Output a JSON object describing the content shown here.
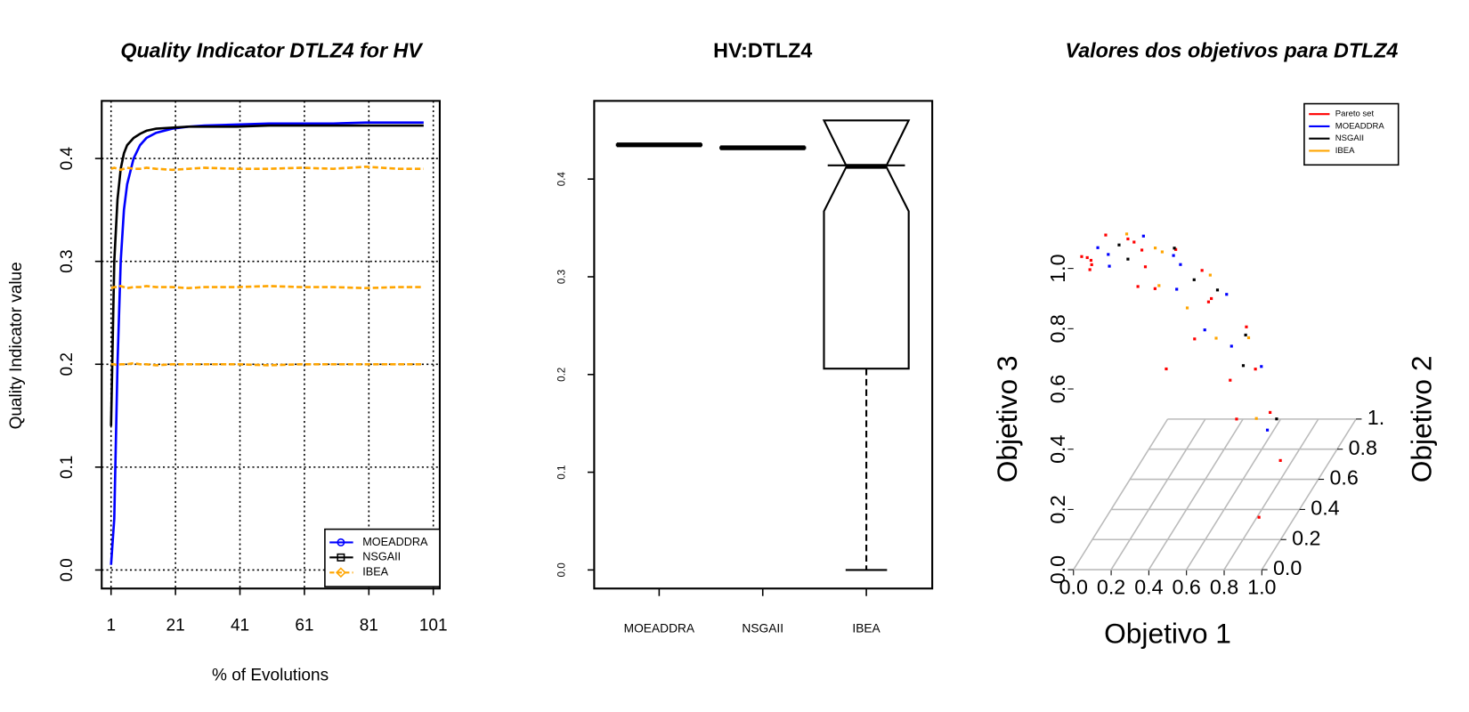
{
  "chart_data": [
    {
      "type": "line",
      "title": "Quality Indicator DTLZ4 for HV",
      "xlabel": "% of Evolutions",
      "ylabel": "Quality Indicator value",
      "x": [
        1,
        2,
        3,
        4,
        5,
        6,
        8,
        10,
        12,
        15,
        20,
        25,
        30,
        40,
        50,
        60,
        70,
        80,
        90,
        98
      ],
      "series": [
        {
          "name": "MOEADDRA",
          "color": "#0000ff",
          "linestyle": "solid",
          "marker": "circle",
          "values": [
            0.005,
            0.05,
            0.2,
            0.3,
            0.35,
            0.375,
            0.4,
            0.413,
            0.42,
            0.425,
            0.429,
            0.431,
            0.432,
            0.433,
            0.434,
            0.434,
            0.434,
            0.435,
            0.435,
            0.435
          ]
        },
        {
          "name": "NSGAII",
          "color": "#000000",
          "linestyle": "solid",
          "marker": "square",
          "values": [
            0.14,
            0.3,
            0.36,
            0.39,
            0.405,
            0.413,
            0.42,
            0.424,
            0.427,
            0.429,
            0.43,
            0.431,
            0.431,
            0.431,
            0.432,
            0.432,
            0.432,
            0.432,
            0.432,
            0.432
          ]
        },
        {
          "name": "IBEA",
          "color": "#ffa500",
          "linestyle": "dashed",
          "marker": "diamond",
          "values": [
            0.39,
            0.391,
            0.39,
            0.389,
            0.39,
            0.391,
            0.39,
            0.39,
            0.391,
            0.39,
            0.389,
            0.39,
            0.391,
            0.39,
            0.39,
            0.391,
            0.39,
            0.392,
            0.39,
            0.39
          ]
        },
        {
          "name": "IBEA",
          "color": "#ffa500",
          "linestyle": "dashed",
          "marker": "diamond",
          "values": [
            0.274,
            0.275,
            0.275,
            0.276,
            0.275,
            0.274,
            0.275,
            0.275,
            0.276,
            0.275,
            0.275,
            0.274,
            0.275,
            0.275,
            0.276,
            0.275,
            0.275,
            0.274,
            0.275,
            0.275
          ]
        },
        {
          "name": "IBEA",
          "color": "#ffa500",
          "linestyle": "dashed",
          "marker": "diamond",
          "values": [
            0.2,
            0.2,
            0.199,
            0.2,
            0.2,
            0.2,
            0.201,
            0.2,
            0.2,
            0.199,
            0.2,
            0.2,
            0.2,
            0.2,
            0.199,
            0.2,
            0.2,
            0.2,
            0.2,
            0.2
          ]
        }
      ],
      "xlim": [
        -1.9,
        103
      ],
      "ylim": [
        -0.018,
        0.456
      ],
      "xticks": [
        1,
        21,
        41,
        61,
        81,
        101
      ],
      "yticks": [
        {
          "value": 0,
          "label": "0.0"
        },
        {
          "value": 0.1,
          "label": "0.1"
        },
        {
          "value": 0.2,
          "label": "0.2"
        },
        {
          "value": 0.3,
          "label": "0.3"
        },
        {
          "value": 0.4,
          "label": "0.4"
        }
      ],
      "grid": true,
      "legend": "bottom-right"
    },
    {
      "type": "box",
      "title": "HV:DTLZ4",
      "categories": [
        "MOEADDRA",
        "NSGAII",
        "IBEA"
      ],
      "boxes": [
        {
          "min": 0.434,
          "q1": 0.4345,
          "median": 0.435,
          "q3": 0.4355,
          "max": 0.436
        },
        {
          "min": 0.431,
          "q1": 0.4315,
          "median": 0.432,
          "q3": 0.4325,
          "max": 0.433
        },
        {
          "min": 0,
          "q1": 0.206,
          "median": 0.413,
          "q3": 0.414,
          "max": 0.414,
          "notch": [
            0.367,
            0.46
          ]
        }
      ],
      "ylim": [
        -0.019,
        0.48
      ],
      "yticks": [
        {
          "value": 0,
          "label": "0.0"
        },
        {
          "value": 0.1,
          "label": "0.1"
        },
        {
          "value": 0.2,
          "label": "0.2"
        },
        {
          "value": 0.3,
          "label": "0.3"
        },
        {
          "value": 0.4,
          "label": "0.4"
        }
      ]
    },
    {
      "type": "scatter3d",
      "title": "Valores dos objetivos para DTLZ4",
      "xlabel": "Objetivo 1",
      "ylabel": "Objetivo 2",
      "zlabel": "Objetivo 3",
      "xlim": [
        0,
        1
      ],
      "ylim": [
        0,
        1
      ],
      "zlim": [
        0,
        1
      ],
      "xticks": [
        {
          "value": 0,
          "label": "0.0"
        },
        {
          "value": 0.2,
          "label": "0.2"
        },
        {
          "value": 0.4,
          "label": "0.4"
        },
        {
          "value": 0.6,
          "label": "0.6"
        },
        {
          "value": 0.8,
          "label": "0.8"
        },
        {
          "value": 1,
          "label": "1.0"
        }
      ],
      "yticks": [
        {
          "value": 0,
          "label": "0.0"
        },
        {
          "value": 0.2,
          "label": "0.2"
        },
        {
          "value": 0.4,
          "label": "0.4"
        },
        {
          "value": 0.6,
          "label": "0.6"
        },
        {
          "value": 0.8,
          "label": "0.8"
        },
        {
          "value": 1,
          "label": "1."
        }
      ],
      "zticks": [
        {
          "value": 0,
          "label": "0.0"
        },
        {
          "value": 0.2,
          "label": "0.2"
        },
        {
          "value": 0.4,
          "label": "0.4"
        },
        {
          "value": 0.6,
          "label": "0.6"
        },
        {
          "value": 0.8,
          "label": "0.8"
        },
        {
          "value": 1,
          "label": "1.0"
        }
      ],
      "grid": true,
      "legend": "top-right",
      "series": [
        {
          "name": "Pareto set",
          "color": "#ff0000",
          "x": [
            0.985,
            0.91,
            0.696,
            0.377,
            0,
            0.866,
            0.8,
            0.612,
            0.332,
            0,
            0.643,
            0.594,
            0.455,
            0.246,
            0,
            0.342,
            0.316,
            0.242,
            0.131,
            0,
            0.087,
            0.08,
            0.062,
            0.033,
            0
          ],
          "y": [
            0,
            0.377,
            0.696,
            0.91,
            0.985,
            0,
            0.332,
            0.612,
            0.8,
            0.866,
            0,
            0.246,
            0.455,
            0.594,
            0.643,
            0,
            0.131,
            0.242,
            0.316,
            0.342,
            0,
            0.033,
            0.062,
            0.08,
            0.087
          ],
          "z": [
            0.174,
            0.174,
            0.174,
            0.174,
            0.174,
            0.5,
            0.5,
            0.5,
            0.5,
            0.5,
            0.766,
            0.766,
            0.766,
            0.766,
            0.766,
            0.94,
            0.94,
            0.94,
            0.94,
            0.94,
            0.996,
            0.996,
            0.996,
            0.996,
            0.996
          ]
        },
        {
          "name": "MOEADDRA",
          "color": "#0000ff",
          "x": [
            0.908,
            0.665,
            0.243,
            0.74,
            0.542,
            0.198,
            0.483,
            0.354,
            0.13,
            0.168,
            0.123,
            0.045
          ],
          "y": [
            0.243,
            0.665,
            0.908,
            0.198,
            0.542,
            0.74,
            0.13,
            0.354,
            0.483,
            0.045,
            0.123,
            0.168
          ],
          "z": [
            0.342,
            0.342,
            0.342,
            0.643,
            0.643,
            0.643,
            0.866,
            0.866,
            0.866,
            0.985,
            0.985,
            0.985
          ]
        },
        {
          "name": "NSGAII",
          "color": "#000000",
          "x": [
            0.837,
            0.483,
            0.709,
            0.41,
            0.497,
            0.287,
            0.224,
            0.13
          ],
          "y": [
            0.483,
            0.837,
            0.41,
            0.709,
            0.287,
            0.497,
            0.13,
            0.224
          ],
          "z": [
            0.259,
            0.259,
            0.574,
            0.574,
            0.819,
            0.819,
            0.966,
            0.966
          ]
        },
        {
          "name": "IBEA",
          "color": "#ffa500",
          "x": [
            0.892,
            0.583,
            0.158,
            0.696,
            0.455,
            0.123,
            0.417,
            0.272,
            0.074
          ],
          "y": [
            0.158,
            0.694,
            0.892,
            0.123,
            0.542,
            0.696,
            0.074,
            0.324,
            0.417
          ],
          "z": [
            0.423,
            0.423,
            0.423,
            0.707,
            0.707,
            0.707,
            0.906,
            0.906,
            0.906
          ]
        }
      ]
    }
  ]
}
